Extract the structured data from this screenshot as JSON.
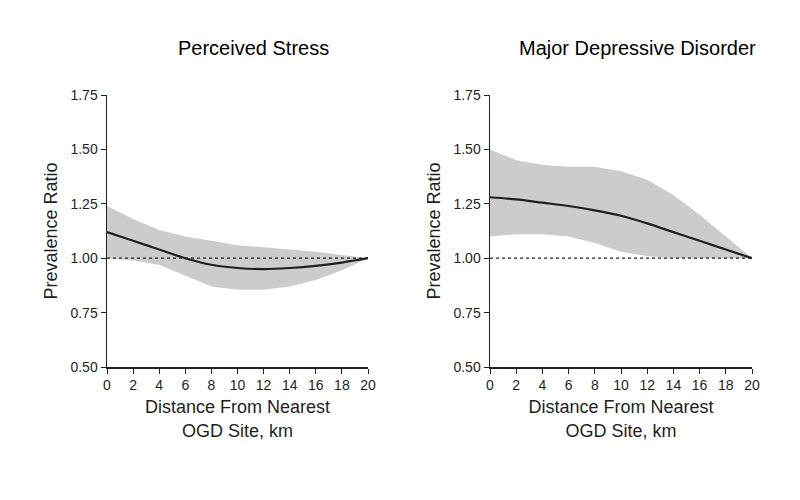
{
  "chart_data": [
    {
      "type": "line",
      "title": "Perceived Stress",
      "x_label": [
        "Distance From Nearest",
        "OGD Site, km"
      ],
      "y_label": "Prevalence Ratio",
      "x": [
        0,
        2,
        4,
        6,
        8,
        10,
        12,
        14,
        16,
        18,
        20
      ],
      "values": [
        1.12,
        1.08,
        1.04,
        1.0,
        0.97,
        0.955,
        0.95,
        0.955,
        0.965,
        0.98,
        1.0
      ],
      "lower": [
        1.0,
        0.99,
        0.97,
        0.92,
        0.87,
        0.855,
        0.855,
        0.87,
        0.9,
        0.945,
        1.0
      ],
      "upper": [
        1.24,
        1.18,
        1.13,
        1.1,
        1.08,
        1.06,
        1.05,
        1.04,
        1.03,
        1.015,
        1.0
      ],
      "reference": 1,
      "color": "#231f20",
      "xlim": [
        0,
        20
      ],
      "xticks": [
        0,
        2,
        4,
        6,
        8,
        10,
        12,
        14,
        16,
        18,
        20
      ],
      "ylim": [
        0.5,
        1.75
      ],
      "yticks": [
        {
          "value": 0.5,
          "label": "0.50"
        },
        {
          "value": 0.75,
          "label": "0.75"
        },
        {
          "value": 1,
          "label": "1.00"
        },
        {
          "value": 1.25,
          "label": "1.25"
        },
        {
          "value": 1.5,
          "label": "1.50"
        },
        {
          "value": 1.75,
          "label": "1.75"
        }
      ],
      "grid": false
    },
    {
      "type": "line",
      "title": "Major Depressive Disorder",
      "x_label": [
        "Distance From Nearest",
        "OGD Site, km"
      ],
      "y_label": "Prevalence Ratio",
      "x": [
        0,
        2,
        4,
        6,
        8,
        10,
        12,
        14,
        16,
        18,
        20
      ],
      "values": [
        1.28,
        1.27,
        1.255,
        1.24,
        1.22,
        1.195,
        1.16,
        1.12,
        1.08,
        1.04,
        1.0
      ],
      "lower": [
        1.1,
        1.11,
        1.11,
        1.1,
        1.07,
        1.03,
        1.01,
        1.0,
        1.0,
        1.0,
        1.0
      ],
      "upper": [
        1.5,
        1.45,
        1.43,
        1.42,
        1.42,
        1.4,
        1.36,
        1.29,
        1.2,
        1.1,
        1.0
      ],
      "reference": 1,
      "color": "#231f20",
      "xlim": [
        0,
        20
      ],
      "xticks": [
        0,
        2,
        4,
        6,
        8,
        10,
        12,
        14,
        16,
        18,
        20
      ],
      "ylim": [
        0.5,
        1.75
      ],
      "yticks": [
        {
          "value": 0.5,
          "label": "0.50"
        },
        {
          "value": 0.75,
          "label": "0.75"
        },
        {
          "value": 1,
          "label": "1.00"
        },
        {
          "value": 1.25,
          "label": "1.25"
        },
        {
          "value": 1.5,
          "label": "1.50"
        },
        {
          "value": 1.75,
          "label": "1.75"
        }
      ],
      "grid": false
    }
  ]
}
